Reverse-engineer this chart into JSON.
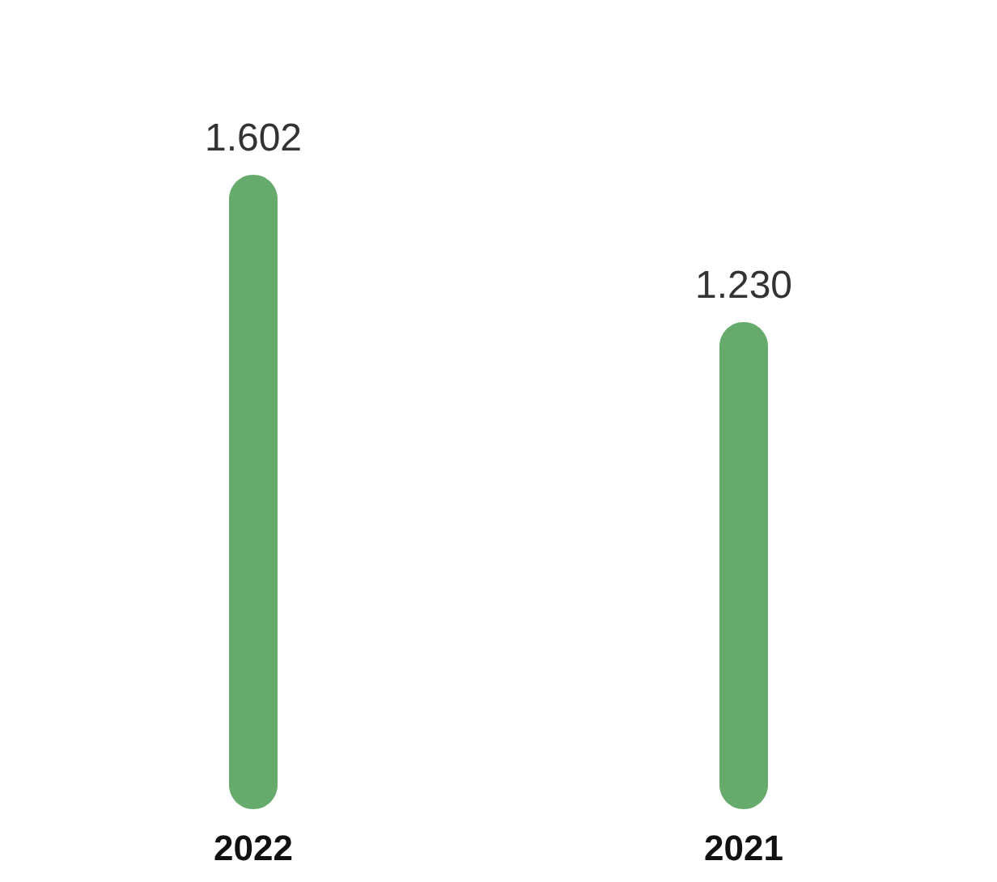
{
  "chart_data": {
    "type": "bar",
    "categories": [
      "2022",
      "2021"
    ],
    "values": [
      1.602,
      1.23
    ],
    "value_labels": [
      "1.602",
      "1.230"
    ],
    "color": "#66ab6b",
    "grid": false
  }
}
